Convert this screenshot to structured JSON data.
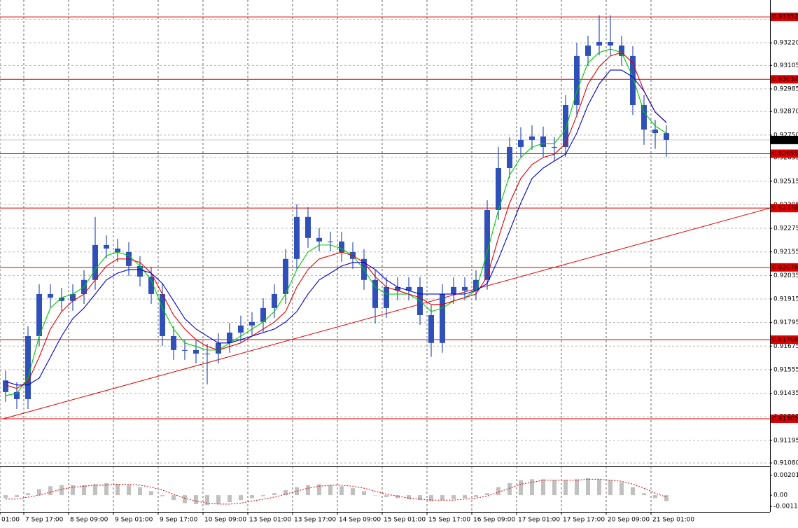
{
  "chart_data": {
    "type": "candlestick",
    "candle_color": "#2f50b8",
    "x": [
      0,
      1,
      2,
      3,
      4,
      5,
      6,
      7,
      8,
      9,
      10,
      11,
      12,
      13,
      14,
      15,
      16,
      17,
      18,
      19,
      20,
      21,
      22,
      23,
      24,
      25,
      26,
      27,
      28,
      29,
      30,
      31,
      32,
      33,
      34,
      35,
      36,
      37,
      38,
      39,
      40,
      41,
      42,
      43,
      44,
      45,
      46,
      47,
      48,
      49,
      50,
      51,
      52,
      53,
      54,
      55,
      56,
      57,
      58,
      59
    ],
    "open": [
      0.915,
      0.91441,
      0.91405,
      0.91726,
      0.9194,
      0.91922,
      0.91905,
      0.9194,
      0.92012,
      0.9219,
      0.92172,
      0.92154,
      0.92083,
      0.92029,
      0.9194,
      0.91726,
      0.91655,
      0.91655,
      0.91637,
      0.91637,
      0.91691,
      0.91744,
      0.9178,
      0.91798,
      0.91869,
      0.9194,
      0.92119,
      0.92333,
      0.92226,
      0.92208,
      0.92208,
      0.92154,
      0.92119,
      0.92012,
      0.91869,
      0.91976,
      0.91958,
      0.91976,
      0.91833,
      0.91691,
      0.9194,
      0.91976,
      0.91958,
      0.92012,
      0.92368,
      0.92582,
      0.92689,
      0.92725,
      0.92743,
      0.92689,
      0.92689,
      0.92903,
      0.93153,
      0.93206,
      0.93224,
      0.93206,
      0.93153,
      0.92903,
      0.92778,
      0.9276
    ],
    "high": [
      0.9155,
      0.91491,
      0.91776,
      0.9199,
      0.9199,
      0.91972,
      0.9199,
      0.92062,
      0.92333,
      0.9224,
      0.92222,
      0.92204,
      0.92133,
      0.92079,
      0.9199,
      0.91776,
      0.91705,
      0.91705,
      0.91687,
      0.91741,
      0.91794,
      0.9183,
      0.91848,
      0.91919,
      0.9199,
      0.92169,
      0.92398,
      0.92383,
      0.92276,
      0.92258,
      0.92258,
      0.92204,
      0.92169,
      0.92062,
      0.92026,
      0.92026,
      0.92026,
      0.92026,
      0.91883,
      0.9199,
      0.92026,
      0.92026,
      0.92062,
      0.92418,
      0.9269,
      0.92739,
      0.9279,
      0.928,
      0.92793,
      0.92739,
      0.92953,
      0.9322,
      0.93256,
      0.9336,
      0.9336,
      0.93256,
      0.93203,
      0.92953,
      0.92828,
      0.928
    ],
    "low": [
      0.91391,
      0.91355,
      0.91355,
      0.91676,
      0.91872,
      0.91855,
      0.91855,
      0.9189,
      0.91962,
      0.92122,
      0.92104,
      0.92033,
      0.91979,
      0.9189,
      0.91676,
      0.91605,
      0.91605,
      0.91587,
      0.9148,
      0.91587,
      0.91641,
      0.91694,
      0.9173,
      0.91748,
      0.91819,
      0.9189,
      0.92069,
      0.92176,
      0.92158,
      0.92158,
      0.92104,
      0.92069,
      0.91962,
      0.9179,
      0.91819,
      0.91908,
      0.91908,
      0.91783,
      0.9162,
      0.91641,
      0.9189,
      0.91908,
      0.91908,
      0.91962,
      0.92318,
      0.92532,
      0.92639,
      0.92675,
      0.92639,
      0.9262,
      0.92639,
      0.92853,
      0.93103,
      0.93156,
      0.93156,
      0.93103,
      0.92853,
      0.927,
      0.9268,
      0.9264
    ],
    "close": [
      0.91441,
      0.91405,
      0.91726,
      0.9194,
      0.91922,
      0.91905,
      0.9194,
      0.92012,
      0.9219,
      0.92172,
      0.92154,
      0.92083,
      0.92029,
      0.9194,
      0.91726,
      0.91655,
      0.91655,
      0.91637,
      0.91637,
      0.91691,
      0.91744,
      0.9178,
      0.91798,
      0.91869,
      0.9194,
      0.92119,
      0.92333,
      0.92226,
      0.92208,
      0.92208,
      0.92154,
      0.92119,
      0.92012,
      0.91869,
      0.91976,
      0.91958,
      0.91976,
      0.91833,
      0.91691,
      0.9194,
      0.91976,
      0.91958,
      0.92012,
      0.92368,
      0.92582,
      0.92689,
      0.92725,
      0.92743,
      0.92689,
      0.92689,
      0.92903,
      0.93153,
      0.93206,
      0.93224,
      0.93206,
      0.93153,
      0.92903,
      0.92778,
      0.9276,
      0.92725
    ],
    "overlays": [
      {
        "color": "#00c800",
        "values": [
          0.91423,
          0.91434,
          0.91512,
          0.91726,
          0.91869,
          0.91922,
          0.9194,
          0.91976,
          0.92065,
          0.92136,
          0.92154,
          0.92136,
          0.92083,
          0.92012,
          0.91869,
          0.91762,
          0.91691,
          0.91673,
          0.91655,
          0.91655,
          0.91691,
          0.91726,
          0.91762,
          0.91798,
          0.91851,
          0.9194,
          0.92065,
          0.92154,
          0.9219,
          0.9219,
          0.92172,
          0.92136,
          0.92065,
          0.91976,
          0.9194,
          0.9194,
          0.9194,
          0.91905,
          0.91851,
          0.91869,
          0.91905,
          0.91922,
          0.91958,
          0.92154,
          0.92368,
          0.92546,
          0.92636,
          0.92689,
          0.92707,
          0.92707,
          0.92778,
          0.92974,
          0.93117,
          0.93171,
          0.93188,
          0.93171,
          0.93046,
          0.92867,
          0.92796,
          0.9276
        ]
      },
      {
        "color": "#e00000",
        "values": [
          0.91477,
          0.91459,
          0.91495,
          0.91619,
          0.91762,
          0.91851,
          0.91905,
          0.9194,
          0.92012,
          0.92083,
          0.92119,
          0.92119,
          0.92101,
          0.92047,
          0.9194,
          0.91833,
          0.91762,
          0.91708,
          0.91673,
          0.91655,
          0.91673,
          0.91691,
          0.91726,
          0.91762,
          0.91798,
          0.91851,
          0.91976,
          0.92065,
          0.92119,
          0.92136,
          0.92154,
          0.92136,
          0.92101,
          0.92029,
          0.91976,
          0.91958,
          0.9194,
          0.91922,
          0.91887,
          0.91887,
          0.91905,
          0.91922,
          0.9194,
          0.92029,
          0.92226,
          0.92404,
          0.92529,
          0.926,
          0.92636,
          0.92653,
          0.92707,
          0.9285,
          0.9301,
          0.93099,
          0.93153,
          0.93171,
          0.93117,
          0.92974,
          0.92867,
          0.92814
        ]
      },
      {
        "color": "#0000c8",
        "values": [
          0.91495,
          0.91477,
          0.91477,
          0.91512,
          0.91619,
          0.91726,
          0.91815,
          0.91869,
          0.9194,
          0.92012,
          0.92047,
          0.92065,
          0.92065,
          0.92047,
          0.91994,
          0.91905,
          0.91815,
          0.91762,
          0.91726,
          0.91691,
          0.91691,
          0.91708,
          0.91726,
          0.91744,
          0.91762,
          0.91798,
          0.91851,
          0.9194,
          0.92012,
          0.92047,
          0.92083,
          0.92101,
          0.92101,
          0.92065,
          0.92012,
          0.91976,
          0.91958,
          0.9194,
          0.9194,
          0.9194,
          0.9194,
          0.9194,
          0.91958,
          0.91994,
          0.92119,
          0.92261,
          0.92404,
          0.92529,
          0.92582,
          0.92618,
          0.92653,
          0.9276,
          0.92903,
          0.9301,
          0.93081,
          0.93081,
          0.93046,
          0.92974,
          0.92867,
          0.92814
        ]
      }
    ],
    "trendline": {
      "color": "#e00000",
      "x": [
        -0.2,
        68.25
      ],
      "y": [
        0.91305,
        0.92378
      ]
    },
    "levels": {
      "color": "#e00000",
      "values": [
        0.93352,
        0.93034,
        0.92655,
        0.92378,
        0.92076,
        0.91708,
        0.91305
      ]
    },
    "last_price": 0.92725,
    "xlim": [
      -0.5,
      68.25
    ],
    "ylim": [
      0.91066,
      0.93438
    ],
    "xticks": [
      {
        "value": -0.5,
        "label": "01:00"
      },
      {
        "value": 1.625,
        "label": "7 Sep 17:00"
      },
      {
        "value": 5.625,
        "label": "8 Sep 09:00"
      },
      {
        "value": 9.625,
        "label": "9 Sep 01:00"
      },
      {
        "value": 13.625,
        "label": "9 Sep 17:00"
      },
      {
        "value": 17.625,
        "label": "10 Sep 09:00"
      },
      {
        "value": 21.625,
        "label": "13 Sep 01:00"
      },
      {
        "value": 25.625,
        "label": "13 Sep 17:00"
      },
      {
        "value": 29.625,
        "label": "14 Sep 09:00"
      },
      {
        "value": 33.625,
        "label": "15 Sep 01:00"
      },
      {
        "value": 37.625,
        "label": "15 Sep 17:00"
      },
      {
        "value": 41.625,
        "label": "16 Sep 09:00"
      },
      {
        "value": 45.625,
        "label": "17 Sep 01:00"
      },
      {
        "value": 49.625,
        "label": "17 Sep 17:00"
      },
      {
        "value": 53.625,
        "label": "20 Sep 09:00"
      },
      {
        "value": 57.625,
        "label": "21 Sep 01:00"
      }
    ],
    "yticks": [
      {
        "value": 0.9334,
        "label": "0.93340"
      },
      {
        "value": 0.9322,
        "label": "0.93220"
      },
      0.93105,
      0.92985,
      {
        "value": 0.9287,
        "label": "0.92870"
      },
      {
        "value": 0.9275,
        "label": "0.92750"
      },
      0.92635,
      0.92515,
      0.92395,
      0.92275,
      0.92155,
      0.92035,
      0.91915,
      0.91795,
      0.91675,
      0.91555,
      0.91435,
      0.91315,
      0.91195,
      {
        "value": 0.9108,
        "label": "0.91080"
      }
    ],
    "grid": true,
    "macd": {
      "histogram_color": "#c0c0c0",
      "signal_color": "#e00000",
      "ylim": [
        -0.00161,
        0.00275
      ],
      "yticks": [
        0.00201,
        {
          "value": 0,
          "label": "0.00"
        },
        -0.00113
      ],
      "histogram": [
        -0.0003,
        -0.0002,
        0.0002,
        0.0006,
        0.0009,
        0.001,
        0.001,
        0.001,
        0.0011,
        0.0012,
        0.0011,
        0.001,
        0.0008,
        0.0004,
        -0.0001,
        -0.0005,
        -0.0008,
        -0.0009,
        -0.001,
        -0.0009,
        -0.0007,
        -0.0005,
        -0.0003,
        -0.0001,
        0.0002,
        0.0005,
        0.0008,
        0.001,
        0.0011,
        0.001,
        0.0009,
        0.0007,
        0.0004,
        0,
        -0.0002,
        -0.0003,
        -0.0004,
        -0.0005,
        -0.0006,
        -0.0005,
        -0.0004,
        -0.0003,
        -0.0002,
        0.0002,
        0.0008,
        0.0012,
        0.0015,
        0.0016,
        0.0016,
        0.0015,
        0.0015,
        0.0016,
        0.0017,
        0.0016,
        0.0015,
        0.0013,
        0.0008,
        0.0002,
        -0.0003,
        -0.0006
      ],
      "signal": [
        -0.0004,
        -0.0004,
        -0.0002,
        0,
        0.0003,
        0.0006,
        0.0008,
        0.0009,
        0.001,
        0.001,
        0.0011,
        0.0011,
        0.001,
        0.0008,
        0.0005,
        0.0001,
        -0.0003,
        -0.0006,
        -0.0008,
        -0.0009,
        -0.0009,
        -0.0008,
        -0.0006,
        -0.0004,
        -0.0002,
        0.0001,
        0.0004,
        0.0007,
        0.0009,
        0.001,
        0.001,
        0.0009,
        0.0007,
        0.0004,
        0.0001,
        -0.0001,
        -0.0003,
        -0.0004,
        -0.0005,
        -0.0005,
        -0.0005,
        -0.0004,
        -0.0003,
        -0.0001,
        0.0003,
        0.0007,
        0.0011,
        0.0013,
        0.0015,
        0.0015,
        0.0015,
        0.0015,
        0.0016,
        0.0016,
        0.0015,
        0.0014,
        0.0011,
        0.0007,
        0.0002,
        -0.0002
      ]
    }
  }
}
